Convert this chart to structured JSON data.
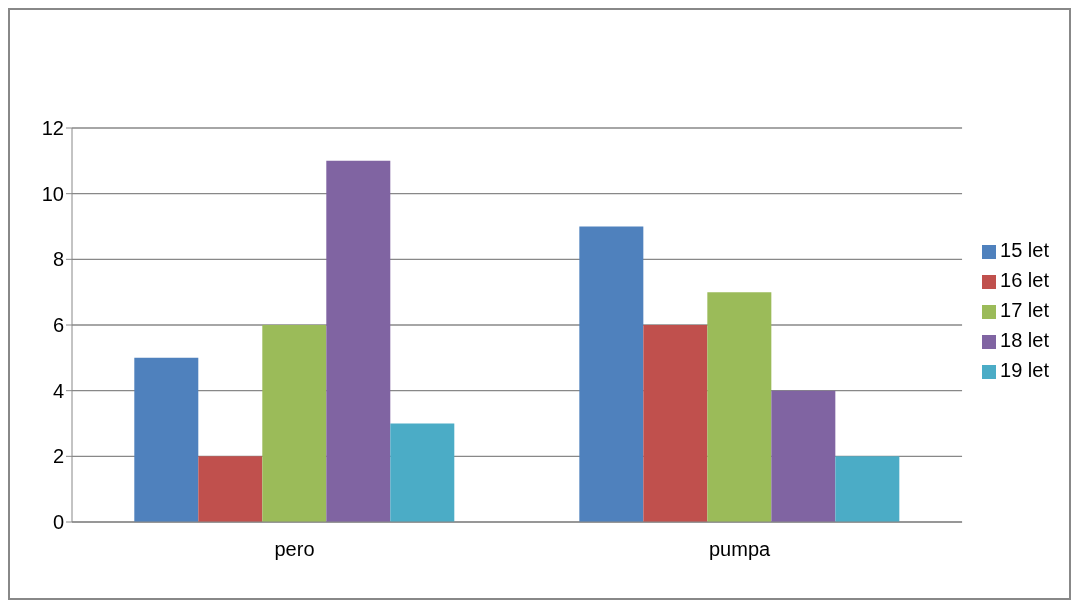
{
  "chart_data": {
    "type": "bar",
    "categories": [
      "pero",
      "pumpa"
    ],
    "series": [
      {
        "name": "15 let",
        "color": "#4f81bd",
        "values": [
          5,
          9
        ]
      },
      {
        "name": "16 let",
        "color": "#c0504d",
        "values": [
          2,
          6
        ]
      },
      {
        "name": "17 let",
        "color": "#9bbb59",
        "values": [
          6,
          7
        ]
      },
      {
        "name": "18 let",
        "color": "#8064a2",
        "values": [
          11,
          4
        ]
      },
      {
        "name": "19 let",
        "color": "#4bacc6",
        "values": [
          3,
          2
        ]
      }
    ],
    "ylim": [
      0,
      12
    ],
    "yticks": [
      0,
      2,
      4,
      6,
      8,
      10,
      12
    ],
    "grid": "y",
    "legend": "right"
  }
}
